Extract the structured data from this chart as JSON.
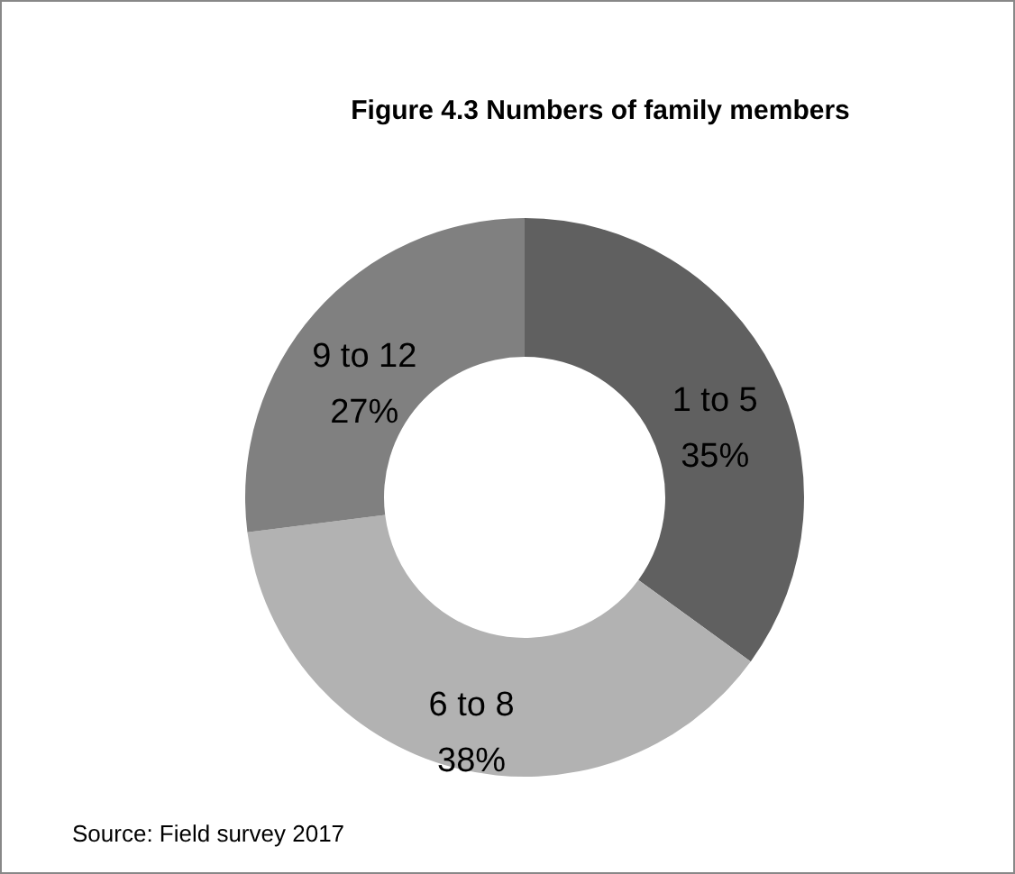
{
  "chart_data": {
    "type": "donut",
    "title": "Figure 4.3 Numbers of family members",
    "categories": [
      "1 to 5",
      "6 to 8",
      "9 to 12"
    ],
    "values": [
      35,
      38,
      27
    ],
    "value_labels": [
      "35%",
      "38%",
      "27%"
    ],
    "colors": [
      "#606060",
      "#b2b2b2",
      "#808080"
    ],
    "annotations": [
      "Source: Field survey 2017"
    ]
  }
}
